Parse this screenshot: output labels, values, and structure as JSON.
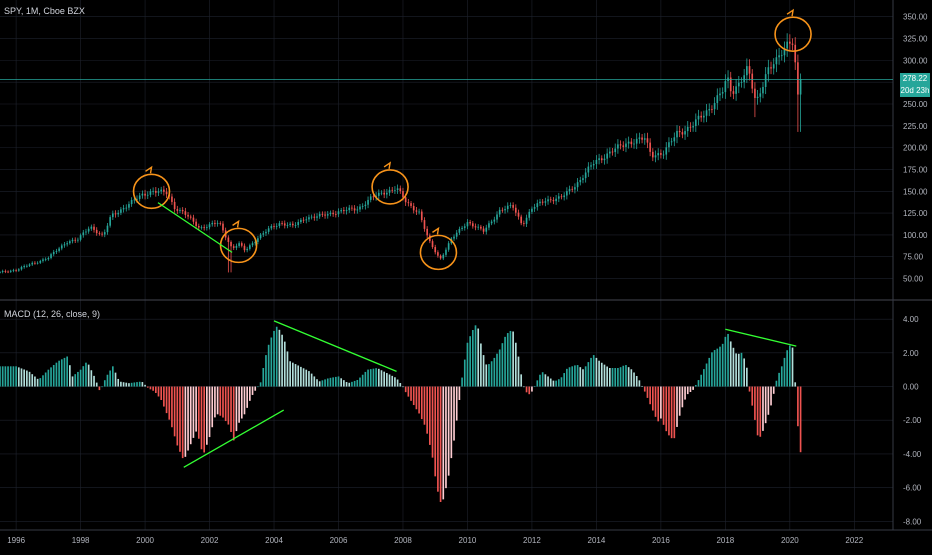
{
  "header": {
    "symbol_line": "SPY, 1M, Cboe BZX",
    "indicator_line": "MACD (12, 26, close, 9)"
  },
  "price_tags": {
    "price": "278.22",
    "countdown": "20d 23h",
    "price_value": 278.22,
    "color": "#26a69a"
  },
  "colors": {
    "up": "#26a69a",
    "down": "#ef5350",
    "hist_pos_strong": "#26a69a",
    "hist_pos_weak": "#b2dfdb",
    "hist_neg_strong": "#ef5350",
    "hist_neg_weak": "#ffcdd2",
    "annotation_circle": "#f7931a",
    "annotation_line": "#33ff33",
    "grid": "#1e222d",
    "axis_text": "#b2b5be"
  },
  "chart_data": [
    {
      "type": "candlestick",
      "symbol": "SPY",
      "interval": "1M",
      "exchange": "Cboe BZX",
      "ylim": [
        30,
        360
      ],
      "y_ticks": [
        "350.00",
        "325.00",
        "300.00",
        "275.00",
        "250.00",
        "225.00",
        "200.00",
        "175.00",
        "150.00",
        "125.00",
        "100.00",
        "75.00",
        "50.00"
      ],
      "x_ticks": [
        "1996",
        "1998",
        "2000",
        "2002",
        "2004",
        "2006",
        "2008",
        "2010",
        "2012",
        "2014",
        "2016",
        "2018",
        "2020",
        "2022"
      ],
      "xlim": [
        1995.5,
        2023.2
      ],
      "close_anchors": [
        [
          1995.5,
          57
        ],
        [
          1996.0,
          60
        ],
        [
          1997.0,
          74
        ],
        [
          1997.6,
          93
        ],
        [
          1997.9,
          94
        ],
        [
          1998.3,
          110
        ],
        [
          1998.7,
          98
        ],
        [
          1998.95,
          122
        ],
        [
          1999.5,
          135
        ],
        [
          1999.9,
          146
        ],
        [
          2000.2,
          150
        ],
        [
          2000.7,
          148
        ],
        [
          2000.9,
          132
        ],
        [
          2001.2,
          125
        ],
        [
          2001.7,
          108
        ],
        [
          2002.3,
          114
        ],
        [
          2002.7,
          84
        ],
        [
          2002.9,
          90
        ],
        [
          2003.1,
          82
        ],
        [
          2003.5,
          97
        ],
        [
          2003.9,
          108
        ],
        [
          2004.2,
          114
        ],
        [
          2004.6,
          110
        ],
        [
          2005.0,
          120
        ],
        [
          2005.5,
          122
        ],
        [
          2006.0,
          127
        ],
        [
          2006.6,
          130
        ],
        [
          2007.0,
          142
        ],
        [
          2007.5,
          150
        ],
        [
          2007.8,
          154
        ],
        [
          2008.1,
          137
        ],
        [
          2008.5,
          126
        ],
        [
          2008.8,
          93
        ],
        [
          2009.15,
          72
        ],
        [
          2009.5,
          95
        ],
        [
          2010.0,
          115
        ],
        [
          2010.5,
          104
        ],
        [
          2011.0,
          128
        ],
        [
          2011.4,
          133
        ],
        [
          2011.7,
          112
        ],
        [
          2012.0,
          130
        ],
        [
          2012.4,
          140
        ],
        [
          2012.9,
          142
        ],
        [
          2013.5,
          163
        ],
        [
          2013.95,
          184
        ],
        [
          2014.5,
          196
        ],
        [
          2014.95,
          206
        ],
        [
          2015.5,
          210
        ],
        [
          2015.7,
          192
        ],
        [
          2016.1,
          194
        ],
        [
          2016.5,
          217
        ],
        [
          2016.95,
          224
        ],
        [
          2017.5,
          245
        ],
        [
          2017.95,
          266
        ],
        [
          2018.05,
          280
        ],
        [
          2018.2,
          263
        ],
        [
          2018.7,
          290
        ],
        [
          2018.95,
          250
        ],
        [
          2019.3,
          290
        ],
        [
          2019.6,
          298
        ],
        [
          2019.95,
          322
        ],
        [
          2020.08,
          325
        ],
        [
          2020.17,
          296
        ],
        [
          2020.25,
          258
        ],
        [
          2020.33,
          278.22
        ]
      ],
      "annotations": [
        {
          "type": "circle",
          "label": "",
          "center": [
            2000.2,
            150
          ]
        },
        {
          "type": "circle",
          "label": "",
          "center": [
            2002.9,
            88
          ]
        },
        {
          "type": "circle",
          "label": "",
          "center": [
            2007.6,
            155
          ]
        },
        {
          "type": "circle",
          "label": "",
          "center": [
            2009.1,
            80
          ]
        },
        {
          "type": "circle",
          "label": "",
          "center": [
            2020.1,
            330
          ]
        },
        {
          "type": "trendline",
          "from": [
            2000.4,
            137
          ],
          "to": [
            2002.7,
            80
          ]
        }
      ]
    },
    {
      "type": "bar",
      "name": "MACD histogram",
      "ylim": [
        -8.4,
        4.9
      ],
      "y_ticks": [
        "4.00",
        "2.00",
        "0.00",
        "-2.00",
        "-4.00",
        "-6.00",
        "-8.00"
      ],
      "hist_anchors": [
        [
          1995.5,
          1.2
        ],
        [
          1996.0,
          1.2
        ],
        [
          1996.4,
          0.9
        ],
        [
          1996.7,
          0.4
        ],
        [
          1997.0,
          1.0
        ],
        [
          1997.3,
          1.5
        ],
        [
          1997.6,
          1.8
        ],
        [
          1997.75,
          0.6
        ],
        [
          1998.0,
          1.0
        ],
        [
          1998.2,
          1.5
        ],
        [
          1998.45,
          0.5
        ],
        [
          1998.6,
          -0.3
        ],
        [
          1998.8,
          0.6
        ],
        [
          1999.0,
          1.2
        ],
        [
          1999.2,
          0.3
        ],
        [
          1999.5,
          0.2
        ],
        [
          1999.9,
          0.3
        ],
        [
          2000.1,
          -0.1
        ],
        [
          2000.3,
          -0.3
        ],
        [
          2000.5,
          -0.8
        ],
        [
          2000.8,
          -2.2
        ],
        [
          2001.0,
          -3.5
        ],
        [
          2001.2,
          -4.4
        ],
        [
          2001.4,
          -3.5
        ],
        [
          2001.6,
          -2.6
        ],
        [
          2001.8,
          -4.1
        ],
        [
          2002.0,
          -3.0
        ],
        [
          2002.2,
          -1.6
        ],
        [
          2002.4,
          -1.8
        ],
        [
          2002.6,
          -2.3
        ],
        [
          2002.75,
          -3.2
        ],
        [
          2002.9,
          -2.2
        ],
        [
          2003.1,
          -1.6
        ],
        [
          2003.3,
          -0.6
        ],
        [
          2003.5,
          0.0
        ],
        [
          2003.6,
          0.3
        ],
        [
          2003.7,
          1.5
        ],
        [
          2003.85,
          2.6
        ],
        [
          2004.0,
          3.3
        ],
        [
          2004.1,
          3.6
        ],
        [
          2004.3,
          2.9
        ],
        [
          2004.5,
          1.5
        ],
        [
          2004.8,
          1.2
        ],
        [
          2005.1,
          0.9
        ],
        [
          2005.4,
          0.3
        ],
        [
          2005.7,
          0.5
        ],
        [
          2006.0,
          0.6
        ],
        [
          2006.3,
          0.2
        ],
        [
          2006.6,
          0.4
        ],
        [
          2006.9,
          1.0
        ],
        [
          2007.2,
          1.1
        ],
        [
          2007.5,
          0.8
        ],
        [
          2007.8,
          0.5
        ],
        [
          2008.0,
          0.0
        ],
        [
          2008.1,
          -0.4
        ],
        [
          2008.3,
          -1.0
        ],
        [
          2008.5,
          -1.6
        ],
        [
          2008.7,
          -2.4
        ],
        [
          2008.9,
          -4.0
        ],
        [
          2009.05,
          -6.0
        ],
        [
          2009.2,
          -7.1
        ],
        [
          2009.4,
          -5.5
        ],
        [
          2009.6,
          -3.0
        ],
        [
          2009.75,
          -0.8
        ],
        [
          2009.85,
          0.8
        ],
        [
          2010.0,
          2.6
        ],
        [
          2010.15,
          3.3
        ],
        [
          2010.3,
          3.8
        ],
        [
          2010.45,
          2.2
        ],
        [
          2010.6,
          1.2
        ],
        [
          2010.8,
          1.6
        ],
        [
          2011.0,
          2.2
        ],
        [
          2011.2,
          3.1
        ],
        [
          2011.4,
          3.4
        ],
        [
          2011.55,
          2.2
        ],
        [
          2011.7,
          0.3
        ],
        [
          2011.8,
          -0.3
        ],
        [
          2011.95,
          -0.5
        ],
        [
          2012.1,
          0.1
        ],
        [
          2012.3,
          0.9
        ],
        [
          2012.5,
          0.6
        ],
        [
          2012.7,
          0.3
        ],
        [
          2012.9,
          0.5
        ],
        [
          2013.1,
          1.1
        ],
        [
          2013.4,
          1.3
        ],
        [
          2013.6,
          1.0
        ],
        [
          2013.9,
          1.9
        ],
        [
          2014.1,
          1.5
        ],
        [
          2014.4,
          1.1
        ],
        [
          2014.7,
          1.1
        ],
        [
          2014.9,
          1.3
        ],
        [
          2015.1,
          1.0
        ],
        [
          2015.3,
          0.5
        ],
        [
          2015.5,
          -0.3
        ],
        [
          2015.7,
          -1.2
        ],
        [
          2015.9,
          -2.1
        ],
        [
          2016.0,
          -1.9
        ],
        [
          2016.2,
          -2.8
        ],
        [
          2016.4,
          -3.2
        ],
        [
          2016.6,
          -1.6
        ],
        [
          2016.8,
          -0.5
        ],
        [
          2017.0,
          -0.2
        ],
        [
          2017.2,
          0.5
        ],
        [
          2017.4,
          1.3
        ],
        [
          2017.6,
          2.1
        ],
        [
          2017.8,
          2.3
        ],
        [
          2017.95,
          2.6
        ],
        [
          2018.05,
          3.3
        ],
        [
          2018.2,
          2.5
        ],
        [
          2018.35,
          1.9
        ],
        [
          2018.5,
          2.0
        ],
        [
          2018.65,
          1.4
        ],
        [
          2018.75,
          -0.3
        ],
        [
          2018.9,
          -1.8
        ],
        [
          2019.0,
          -2.9
        ],
        [
          2019.1,
          -3.0
        ],
        [
          2019.3,
          -1.9
        ],
        [
          2019.45,
          -0.9
        ],
        [
          2019.6,
          0.5
        ],
        [
          2019.75,
          1.2
        ],
        [
          2019.9,
          2.1
        ],
        [
          2020.05,
          2.6
        ],
        [
          2020.12,
          2.0
        ],
        [
          2020.2,
          -1.0
        ],
        [
          2020.27,
          -2.9
        ],
        [
          2020.33,
          -3.9
        ]
      ],
      "annotations": [
        {
          "type": "trendline",
          "from": [
            2001.2,
            -4.8
          ],
          "to": [
            2004.3,
            -1.4
          ]
        },
        {
          "type": "trendline",
          "from": [
            2004.0,
            3.9
          ],
          "to": [
            2007.8,
            0.9
          ]
        },
        {
          "type": "trendline",
          "from": [
            2018.0,
            3.4
          ],
          "to": [
            2020.2,
            2.4
          ]
        }
      ]
    }
  ]
}
